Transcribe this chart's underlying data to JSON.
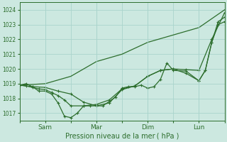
{
  "xlabel": "Pression niveau de la mer ( hPa )",
  "bg_color": "#cce8e0",
  "grid_color": "#aad4cc",
  "line_color": "#2d6e2d",
  "ylim": [
    1016.5,
    1024.5
  ],
  "yticks": [
    1017,
    1018,
    1019,
    1020,
    1021,
    1022,
    1023,
    1024
  ],
  "xtick_labels": [
    "",
    "Sam",
    "",
    "Mar",
    "",
    "Dim",
    "",
    "Lun",
    ""
  ],
  "xtick_positions": [
    0,
    1,
    2,
    3,
    4,
    5,
    6,
    7,
    8
  ],
  "vlines": [
    1,
    3,
    5,
    7
  ],
  "series": [
    {
      "x": [
        0,
        1,
        2,
        3,
        4,
        5,
        6,
        7,
        8
      ],
      "y": [
        1018.9,
        1019.0,
        1019.5,
        1020.5,
        1021.0,
        1021.8,
        1022.3,
        1022.8,
        1024.0
      ],
      "has_markers": false
    },
    {
      "x": [
        0,
        0.25,
        0.5,
        0.75,
        1.0,
        1.25,
        1.5,
        1.75,
        2.0,
        2.25,
        2.5,
        2.75,
        3.0,
        3.25,
        3.5,
        3.75,
        4.0,
        4.25,
        4.5,
        4.75,
        5.0,
        5.25,
        5.5,
        5.75,
        6.0,
        6.5,
        7.0,
        7.25,
        7.5,
        7.75,
        8.0
      ],
      "y": [
        1018.9,
        1019.0,
        1018.8,
        1018.5,
        1018.5,
        1018.3,
        1017.7,
        1016.8,
        1016.7,
        1017.0,
        1017.5,
        1017.5,
        1017.5,
        1017.5,
        1017.8,
        1018.1,
        1018.7,
        1018.8,
        1018.8,
        1018.9,
        1018.7,
        1018.8,
        1019.3,
        1020.4,
        1019.9,
        1019.85,
        1019.2,
        1019.9,
        1021.8,
        1023.2,
        1023.5
      ],
      "has_markers": true
    },
    {
      "x": [
        0,
        0.25,
        0.5,
        0.75,
        1.0,
        1.25,
        1.5,
        1.75,
        2.0,
        2.5,
        3.0,
        3.5,
        4.0,
        4.5,
        5.0,
        5.5,
        6.0,
        6.5,
        7.0,
        7.5,
        8.0
      ],
      "y": [
        1018.9,
        1018.85,
        1018.75,
        1018.65,
        1018.6,
        1018.4,
        1018.2,
        1017.9,
        1017.5,
        1017.5,
        1017.6,
        1017.9,
        1018.65,
        1018.85,
        1019.5,
        1019.9,
        1020.0,
        1019.95,
        1019.9,
        1022.0,
        1023.8
      ],
      "has_markers": true
    },
    {
      "x": [
        0,
        0.5,
        1.0,
        1.5,
        2.0,
        2.5,
        3.0,
        3.5,
        4.0,
        4.5,
        5.0,
        5.5,
        6.0,
        6.5,
        7.0,
        7.25,
        7.5,
        7.75,
        8.0
      ],
      "y": [
        1018.9,
        1018.8,
        1018.75,
        1018.5,
        1018.3,
        1017.75,
        1017.5,
        1017.7,
        1018.6,
        1018.85,
        1019.5,
        1019.9,
        1020.0,
        1019.7,
        1019.2,
        1019.9,
        1021.8,
        1023.0,
        1023.2
      ],
      "has_markers": true
    }
  ],
  "marker": "+",
  "marker_size": 3.5,
  "linewidth": 0.9
}
